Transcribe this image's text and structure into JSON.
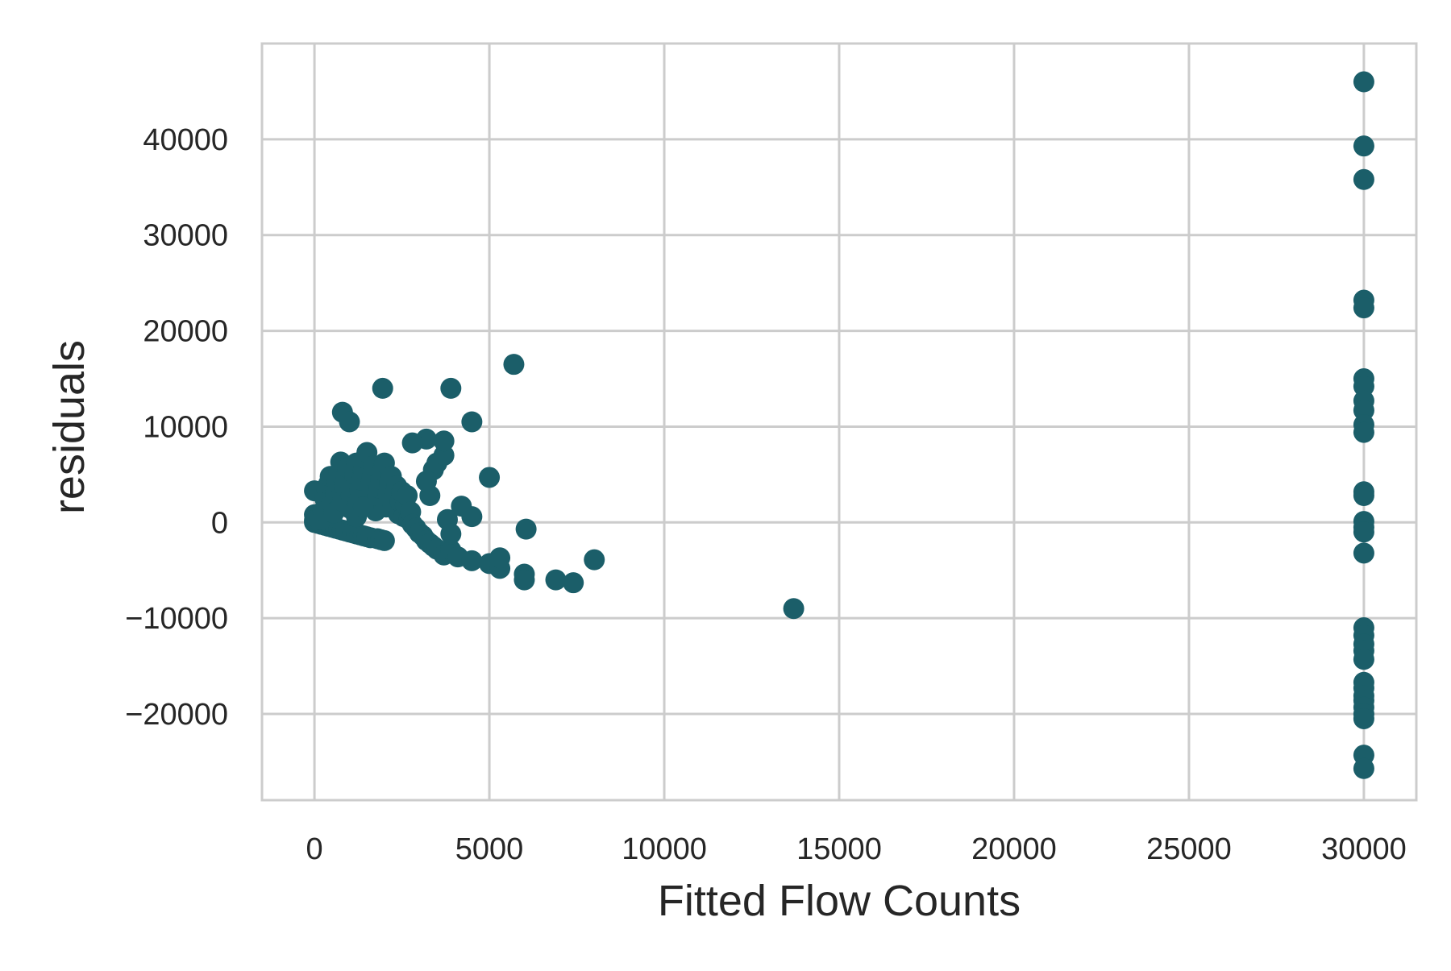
{
  "chart_data": {
    "type": "scatter",
    "xlabel": "Fitted Flow Counts",
    "ylabel": "residuals",
    "xlim": [
      -1500,
      31500
    ],
    "ylim": [
      -29000,
      50000
    ],
    "xticks": [
      0,
      5000,
      10000,
      15000,
      20000,
      25000,
      30000
    ],
    "xtick_labels": [
      "0",
      "5000",
      "10000",
      "15000",
      "20000",
      "25000",
      "30000"
    ],
    "yticks": [
      -20000,
      -10000,
      0,
      10000,
      20000,
      30000,
      40000
    ],
    "ytick_labels": [
      "−20000",
      "−10000",
      "0",
      "10000",
      "20000",
      "30000",
      "40000"
    ],
    "grid": true,
    "colors": {
      "marker": "#1b5e69",
      "grid": "#cccccc",
      "spine": "#cccccc",
      "text": "#262626"
    },
    "series": [
      {
        "points": [
          [
            0,
            3300
          ],
          [
            0,
            800
          ],
          [
            0,
            200
          ],
          [
            0,
            0
          ],
          [
            100,
            -100
          ],
          [
            200,
            -200
          ],
          [
            300,
            -300
          ],
          [
            400,
            -400
          ],
          [
            500,
            -500
          ],
          [
            600,
            -600
          ],
          [
            700,
            -700
          ],
          [
            800,
            -800
          ],
          [
            900,
            -900
          ],
          [
            1000,
            -1000
          ],
          [
            1100,
            -1100
          ],
          [
            1200,
            -1200
          ],
          [
            1300,
            -1300
          ],
          [
            1400,
            -1400
          ],
          [
            1500,
            -1500
          ],
          [
            1600,
            -1600
          ],
          [
            1800,
            -1700
          ],
          [
            1900,
            -1800
          ],
          [
            2000,
            -1900
          ],
          [
            150,
            300
          ],
          [
            250,
            1200
          ],
          [
            300,
            2500
          ],
          [
            350,
            3500
          ],
          [
            400,
            4000
          ],
          [
            450,
            4800
          ],
          [
            500,
            2000
          ],
          [
            550,
            1000
          ],
          [
            600,
            3000
          ],
          [
            650,
            4200
          ],
          [
            700,
            5200
          ],
          [
            750,
            6300
          ],
          [
            800,
            2200
          ],
          [
            850,
            3800
          ],
          [
            900,
            4600
          ],
          [
            950,
            5700
          ],
          [
            1000,
            1500
          ],
          [
            1050,
            2800
          ],
          [
            1100,
            3600
          ],
          [
            1150,
            5000
          ],
          [
            1200,
            6200
          ],
          [
            1250,
            2000
          ],
          [
            1300,
            3300
          ],
          [
            1350,
            4400
          ],
          [
            1400,
            5500
          ],
          [
            1450,
            6700
          ],
          [
            1500,
            7300
          ],
          [
            1550,
            2500
          ],
          [
            1600,
            3900
          ],
          [
            1650,
            4800
          ],
          [
            1700,
            5900
          ],
          [
            1750,
            1200
          ],
          [
            1800,
            2800
          ],
          [
            1850,
            3600
          ],
          [
            1900,
            4500
          ],
          [
            1950,
            5400
          ],
          [
            2000,
            6200
          ],
          [
            2050,
            1600
          ],
          [
            2100,
            3000
          ],
          [
            2150,
            4000
          ],
          [
            2200,
            4800
          ],
          [
            2250,
            1800
          ],
          [
            2300,
            3000
          ],
          [
            2350,
            3800
          ],
          [
            2400,
            900
          ],
          [
            2450,
            2200
          ],
          [
            2500,
            3200
          ],
          [
            2550,
            600
          ],
          [
            2600,
            1800
          ],
          [
            2650,
            2800
          ],
          [
            2700,
            300
          ],
          [
            2750,
            1100
          ],
          [
            2800,
            -200
          ],
          [
            2900,
            -600
          ],
          [
            3000,
            -1100
          ],
          [
            3100,
            -1400
          ],
          [
            3200,
            -1900
          ],
          [
            3300,
            -2200
          ],
          [
            3400,
            -2500
          ],
          [
            3500,
            -2800
          ],
          [
            3700,
            -3400
          ],
          [
            3900,
            -2900
          ],
          [
            4100,
            -3600
          ],
          [
            4500,
            -4000
          ],
          [
            5000,
            -4300
          ],
          [
            5300,
            -4800
          ],
          [
            5300,
            -3700
          ],
          [
            6000,
            -5400
          ],
          [
            6000,
            -6000
          ],
          [
            6900,
            -6000
          ],
          [
            7400,
            -6300
          ],
          [
            8000,
            -3900
          ],
          [
            6050,
            -700
          ],
          [
            4500,
            600
          ],
          [
            4200,
            1700
          ],
          [
            3800,
            300
          ],
          [
            3900,
            -1200
          ],
          [
            3300,
            2800
          ],
          [
            3200,
            4300
          ],
          [
            3400,
            5500
          ],
          [
            3500,
            6200
          ],
          [
            3700,
            7000
          ],
          [
            3700,
            8500
          ],
          [
            3200,
            8700
          ],
          [
            2800,
            8300
          ],
          [
            3900,
            14000
          ],
          [
            4500,
            10500
          ],
          [
            5000,
            4700
          ],
          [
            5700,
            16500
          ],
          [
            1950,
            14000
          ],
          [
            800,
            11500
          ],
          [
            1000,
            10500
          ],
          [
            1200,
            600
          ],
          [
            1400,
            1600
          ],
          [
            13700,
            -9000
          ],
          [
            30000,
            46000
          ],
          [
            30000,
            39300
          ],
          [
            30000,
            35800
          ],
          [
            30000,
            23200
          ],
          [
            30000,
            22400
          ],
          [
            30000,
            15000
          ],
          [
            30000,
            14200
          ],
          [
            30000,
            12700
          ],
          [
            30000,
            11700
          ],
          [
            30000,
            10200
          ],
          [
            30000,
            9400
          ],
          [
            30000,
            3200
          ],
          [
            30000,
            2800
          ],
          [
            30000,
            100
          ],
          [
            30000,
            -500
          ],
          [
            30000,
            -1000
          ],
          [
            30000,
            -3200
          ],
          [
            30000,
            -11000
          ],
          [
            30000,
            -11800
          ],
          [
            30000,
            -12700
          ],
          [
            30000,
            -13400
          ],
          [
            30000,
            -14300
          ],
          [
            30000,
            -16700
          ],
          [
            30000,
            -17300
          ],
          [
            30000,
            -18100
          ],
          [
            30000,
            -18600
          ],
          [
            30000,
            -19300
          ],
          [
            30000,
            -20000
          ],
          [
            30000,
            -20500
          ],
          [
            30000,
            -24300
          ],
          [
            30000,
            -25700
          ]
        ]
      }
    ]
  }
}
